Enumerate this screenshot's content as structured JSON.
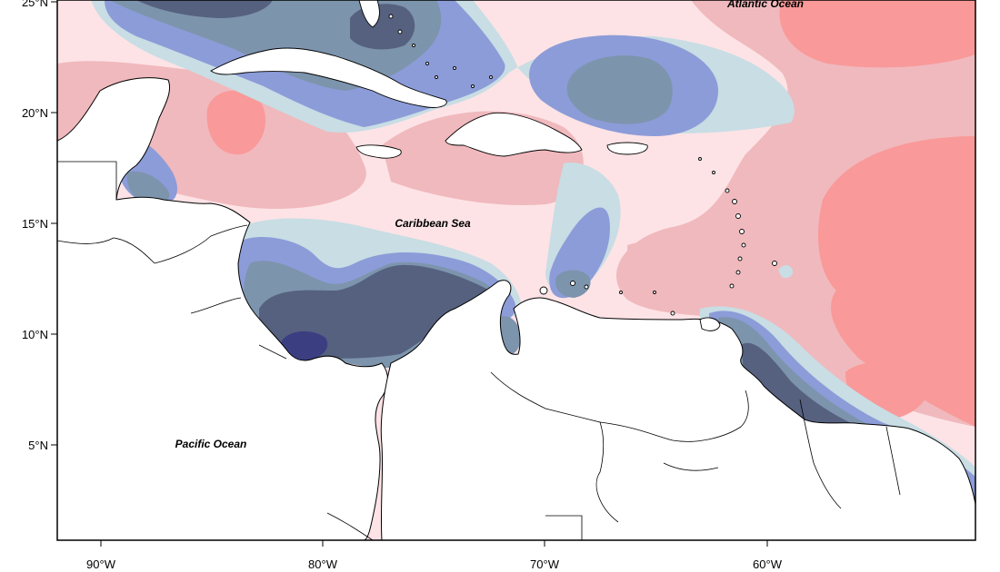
{
  "map": {
    "palette": {
      "very_dark_blue": "#3b3f82",
      "dark_slate": "#566180",
      "steel": "#7d94ad",
      "periwinkle": "#8c9cd8",
      "pale_blue": "#c8dde4",
      "pale_pink": "#fde3e6",
      "light_pink": "#f0b9bd",
      "salmon": "#f99999",
      "deep_salmon": "#f47c7c",
      "land": "#ffffff",
      "outline": "#000000"
    },
    "x_axis": {
      "ticks": [
        "90°W",
        "80°W",
        "70°W",
        "60°W"
      ]
    },
    "y_axis": {
      "ticks": [
        "25°N",
        "20°N",
        "15°N",
        "10°N",
        "5°N"
      ]
    },
    "labels": {
      "atlantic": "Atlantic Ocean",
      "caribbean": "Caribbean Sea",
      "pacific": "Pacific Ocean"
    }
  }
}
